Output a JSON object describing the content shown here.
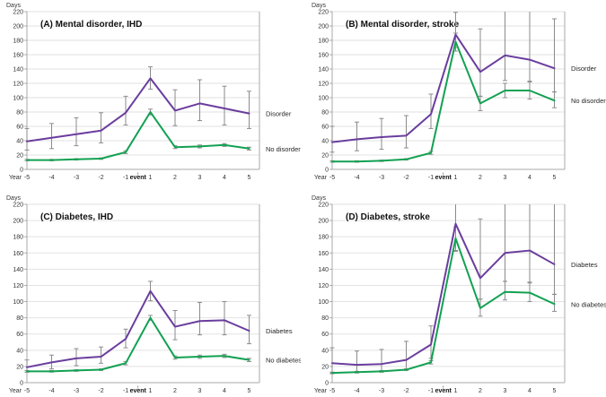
{
  "figure": {
    "y_axis_title": "Days",
    "x_axis_title": "Year",
    "event": {
      "label": "event",
      "arrow": "↑"
    },
    "y_ticks": [
      0,
      20,
      40,
      60,
      80,
      100,
      120,
      140,
      160,
      180,
      200,
      220
    ],
    "x_tick_years": [
      "-5",
      "-4",
      "-3",
      "-2",
      "-1",
      "1",
      "2",
      "3",
      "4",
      "5"
    ],
    "colors": {
      "series_primary": "#6a3d9e",
      "series_secondary": "#12a152",
      "error_bar": "#8b8b8b",
      "gridline": "#e2e2e2",
      "axis": "#a8a8a8",
      "tick_text": "#333333",
      "title_text": "#111111"
    }
  },
  "chart_data": [
    {
      "id": "A",
      "type": "line",
      "title": "(A) Mental disorder, IHD",
      "xlabel": "Year",
      "ylabel": "Days",
      "ylim": [
        0,
        220
      ],
      "x": [
        "-5",
        "-4",
        "-3",
        "-2",
        "-1",
        "1",
        "2",
        "3",
        "4",
        "5"
      ],
      "event_between": [
        "-1",
        "1"
      ],
      "series": [
        {
          "name": "Disorder",
          "color": "#6a3d9e",
          "values": [
            39,
            44,
            49,
            54,
            79,
            127,
            82,
            92,
            85,
            78
          ],
          "err_low": [
            27,
            29,
            33,
            37,
            62,
            112,
            61,
            68,
            62,
            57
          ],
          "err_high": [
            57,
            64,
            72,
            79,
            102,
            143,
            111,
            125,
            116,
            109
          ]
        },
        {
          "name": "No disorder",
          "color": "#12a152",
          "values": [
            13,
            13,
            14,
            15,
            24,
            80,
            31,
            32,
            34,
            29
          ],
          "err_low": [
            12,
            12,
            13,
            14,
            22,
            76,
            29,
            30,
            32,
            27
          ],
          "err_high": [
            14,
            14,
            15,
            16,
            26,
            84,
            33,
            34,
            36,
            31
          ]
        }
      ]
    },
    {
      "id": "B",
      "type": "line",
      "title": "(B) Mental disorder, stroke",
      "xlabel": "Year",
      "ylabel": "Days",
      "ylim": [
        0,
        220
      ],
      "x": [
        "-5",
        "-4",
        "-3",
        "-2",
        "-1",
        "1",
        "2",
        "3",
        "4",
        "5"
      ],
      "event_between": [
        "-1",
        "1"
      ],
      "series": [
        {
          "name": "Disorder",
          "color": "#6a3d9e",
          "values": [
            38,
            42,
            45,
            47,
            77,
            188,
            136,
            159,
            153,
            141
          ],
          "err_low": [
            24,
            26,
            28,
            30,
            57,
            170,
            102,
            124,
            123,
            108
          ],
          "err_high": [
            60,
            66,
            71,
            75,
            105,
            219,
            196,
            220,
            220,
            210
          ]
        },
        {
          "name": "No disorder",
          "color": "#12a152",
          "values": [
            11,
            11,
            12,
            14,
            23,
            178,
            92,
            110,
            110,
            96
          ],
          "err_low": [
            10,
            10,
            11,
            13,
            21,
            165,
            82,
            100,
            98,
            86
          ],
          "err_high": [
            12,
            12,
            13,
            15,
            25,
            190,
            102,
            120,
            122,
            108
          ]
        }
      ]
    },
    {
      "id": "C",
      "type": "line",
      "title": "(C) Diabetes, IHD",
      "xlabel": "Year",
      "ylabel": "Days",
      "ylim": [
        0,
        220
      ],
      "x": [
        "-5",
        "-4",
        "-3",
        "-2",
        "-1",
        "1",
        "2",
        "3",
        "4",
        "5"
      ],
      "event_between": [
        "-1",
        "1"
      ],
      "series": [
        {
          "name": "Diabetes",
          "color": "#6a3d9e",
          "values": [
            19,
            25,
            30,
            32,
            54,
            113,
            69,
            76,
            77,
            64
          ],
          "err_low": [
            13,
            17,
            21,
            24,
            43,
            101,
            53,
            59,
            59,
            48
          ],
          "err_high": [
            28,
            34,
            42,
            44,
            66,
            125,
            89,
            99,
            100,
            83
          ]
        },
        {
          "name": "No diabetes",
          "color": "#12a152",
          "values": [
            14,
            14,
            15,
            16,
            24,
            80,
            31,
            32,
            33,
            28
          ],
          "err_low": [
            13,
            13,
            14,
            15,
            22,
            77,
            29,
            30,
            31,
            26
          ],
          "err_high": [
            15,
            15,
            16,
            17,
            26,
            83,
            33,
            34,
            35,
            30
          ]
        }
      ]
    },
    {
      "id": "D",
      "type": "line",
      "title": "(D) Diabetes, stroke",
      "xlabel": "Year",
      "ylabel": "Days",
      "ylim": [
        0,
        220
      ],
      "x": [
        "-5",
        "-4",
        "-3",
        "-2",
        "-1",
        "1",
        "2",
        "3",
        "4",
        "5"
      ],
      "event_between": [
        "-1",
        "1"
      ],
      "series": [
        {
          "name": "Diabetes",
          "color": "#6a3d9e",
          "values": [
            24,
            22,
            23,
            28,
            47,
            196,
            129,
            160,
            163,
            146
          ],
          "err_low": [
            12,
            12,
            13,
            16,
            30,
            163,
            103,
            125,
            124,
            109
          ],
          "err_high": [
            43,
            39,
            41,
            51,
            70,
            220,
            202,
            220,
            220,
            220
          ]
        },
        {
          "name": "No diabetes",
          "color": "#12a152",
          "values": [
            12,
            13,
            14,
            16,
            25,
            178,
            92,
            112,
            111,
            97
          ],
          "err_low": [
            11,
            12,
            13,
            15,
            23,
            162,
            82,
            102,
            100,
            88
          ],
          "err_high": [
            13,
            14,
            15,
            17,
            27,
            192,
            103,
            125,
            123,
            109
          ]
        }
      ]
    }
  ]
}
